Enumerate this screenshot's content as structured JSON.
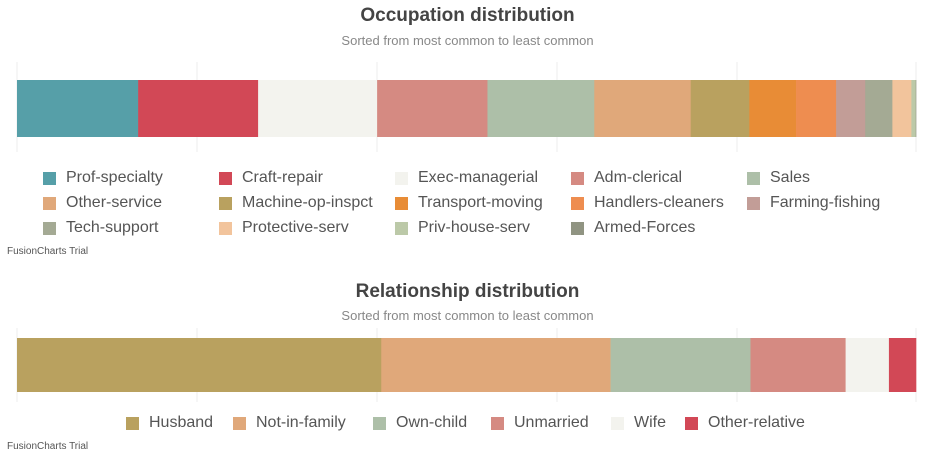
{
  "chart_data": [
    {
      "type": "bar",
      "orientation": "horizontal-stacked-100",
      "title": "Occupation distribution",
      "subtitle": "Sorted from most common to least common",
      "legend_position": "bottom",
      "grid": true,
      "series": [
        {
          "name": "Prof-specialty",
          "value": 4140,
          "color": "#569fa8"
        },
        {
          "name": "Craft-repair",
          "value": 4099,
          "color": "#d24856"
        },
        {
          "name": "Exec-managerial",
          "value": 4066,
          "color": "#f3f3ee"
        },
        {
          "name": "Adm-clerical",
          "value": 3770,
          "color": "#d58a82"
        },
        {
          "name": "Sales",
          "value": 3650,
          "color": "#adbfa8"
        },
        {
          "name": "Other-service",
          "value": 3295,
          "color": "#e0a87a"
        },
        {
          "name": "Machine-op-inspct",
          "value": 2002,
          "color": "#b9a15f"
        },
        {
          "name": "Transport-moving",
          "value": 1597,
          "color": "#e88c36"
        },
        {
          "name": "Handlers-cleaners",
          "value": 1370,
          "color": "#ee8d50"
        },
        {
          "name": "Farming-fishing",
          "value": 994,
          "color": "#c29d97"
        },
        {
          "name": "Tech-support",
          "value": 928,
          "color": "#a4aa94"
        },
        {
          "name": "Protective-serv",
          "value": 649,
          "color": "#f2c49c"
        },
        {
          "name": "Priv-house-serv",
          "value": 149,
          "color": "#bcc9a8"
        },
        {
          "name": "Armed-Forces",
          "value": 9,
          "color": "#909482"
        }
      ]
    },
    {
      "type": "bar",
      "orientation": "horizontal-stacked-100",
      "title": "Relationship distribution",
      "subtitle": "Sorted from most common to least common",
      "legend_position": "bottom",
      "grid": true,
      "series": [
        {
          "name": "Husband",
          "value": 13193,
          "color": "#b9a15f"
        },
        {
          "name": "Not-in-family",
          "value": 8305,
          "color": "#e0a87a"
        },
        {
          "name": "Own-child",
          "value": 5068,
          "color": "#adbfa8"
        },
        {
          "name": "Unmarried",
          "value": 3446,
          "color": "#d58a82"
        },
        {
          "name": "Wife",
          "value": 1568,
          "color": "#f3f3ee"
        },
        {
          "name": "Other-relative",
          "value": 981,
          "color": "#d24856"
        }
      ]
    }
  ],
  "watermark": "FusionCharts Trial"
}
